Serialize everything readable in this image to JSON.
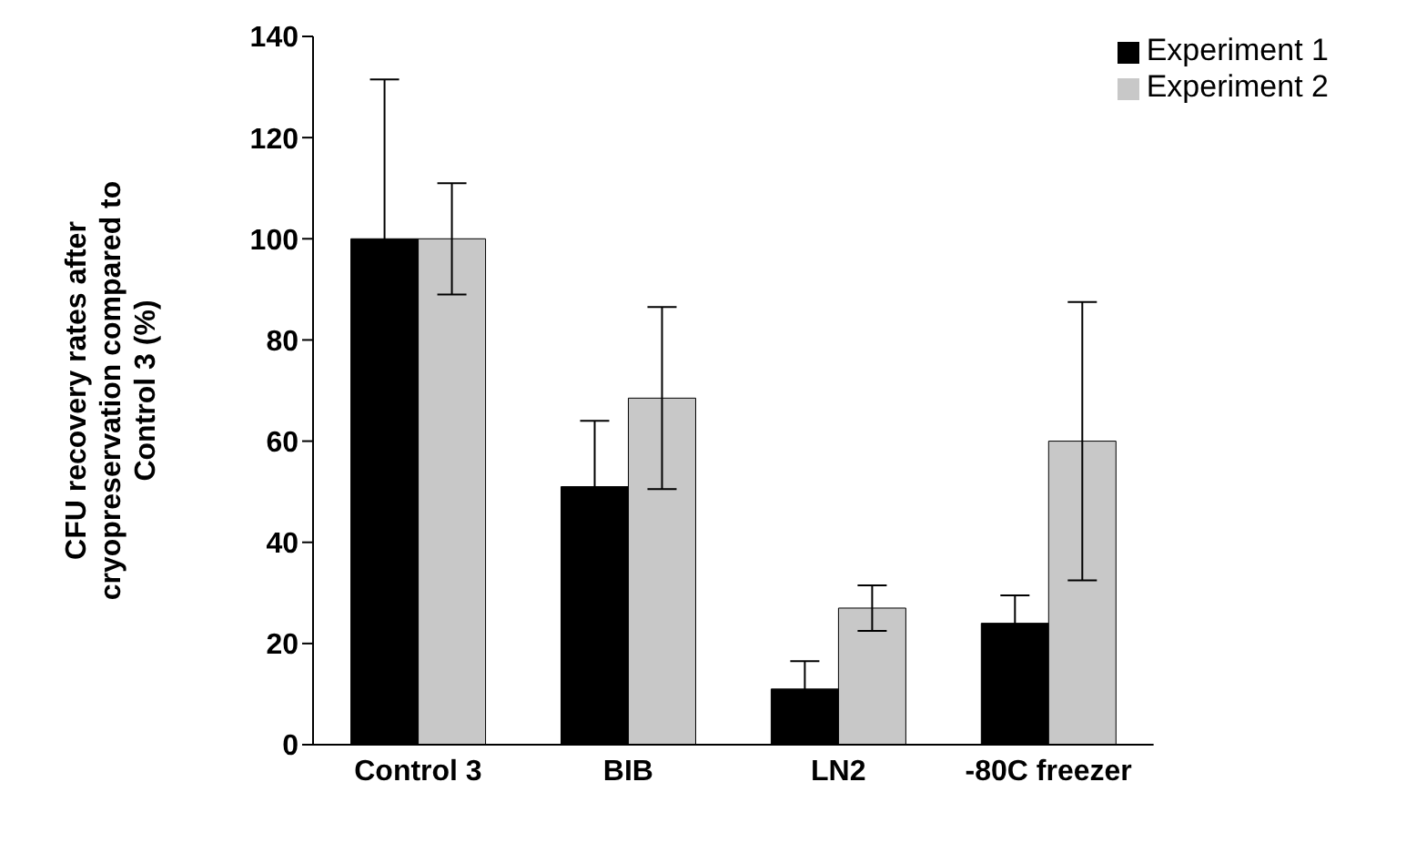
{
  "chart_data": {
    "type": "bar",
    "ylabel": "CFU recovery rates after cryopreservation compared to Control 3 (%)",
    "categories": [
      "Control 3",
      "BIB",
      "LN2",
      "-80C freezer"
    ],
    "series": [
      {
        "name": "Experiment 1",
        "color": "#000000",
        "values": [
          100,
          51,
          11,
          24
        ],
        "errors": [
          31.5,
          13,
          5.5,
          5.5
        ]
      },
      {
        "name": "Experiment 2",
        "color": "#c8c8c8",
        "values": [
          100,
          68.5,
          27,
          60
        ],
        "errors": [
          11,
          18,
          4.5,
          27.5
        ]
      }
    ],
    "ylim": [
      0,
      140
    ],
    "yticks": [
      0,
      20,
      40,
      60,
      80,
      100,
      120,
      140
    ],
    "legend": "top right"
  }
}
